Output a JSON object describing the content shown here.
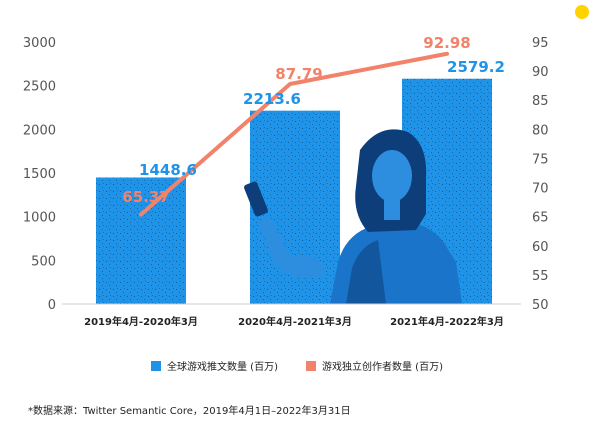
{
  "colors": {
    "bar": "#1f93e8",
    "line": "#f2826a",
    "accent_dot": "#ffd200",
    "axis": "#cccccc",
    "tick": "#555555",
    "photo_overlay": "#0d3e7a"
  },
  "chart_data": {
    "type": "bar",
    "categories": [
      "2019年4月-2020年3月",
      "2020年4月-2021年3月",
      "2021年4月-2022年3月"
    ],
    "series": [
      {
        "name": "全球游戏推文数量 (百万)",
        "type": "bar",
        "axis": "left",
        "values": [
          1448.6,
          2213.6,
          2579.2
        ],
        "labels": [
          "1448.6",
          "2213.6",
          "2579.2"
        ]
      },
      {
        "name": "游戏独立创作者数量 (百万)",
        "type": "line",
        "axis": "right",
        "values": [
          65.37,
          87.79,
          92.98
        ],
        "labels": [
          "65.37",
          "87.79",
          "92.98"
        ]
      }
    ],
    "y_left": {
      "ylim": [
        0,
        3000
      ],
      "ticks": [
        "0",
        "500",
        "1000",
        "1500",
        "2000",
        "2500",
        "3000"
      ]
    },
    "y_right": {
      "ylim": [
        50,
        95
      ],
      "ticks": [
        "50",
        "55",
        "60",
        "65",
        "70",
        "75",
        "80",
        "85",
        "90",
        "95"
      ]
    },
    "grid": false,
    "legend_position": "bottom"
  },
  "legend": {
    "bar_label": "全球游戏推文数量 (百万)",
    "line_label": "游戏独立创作者数量 (百万)"
  },
  "footnote": "*数据来源：Twitter Semantic Core，2019年4月1日–2022年3月31日"
}
